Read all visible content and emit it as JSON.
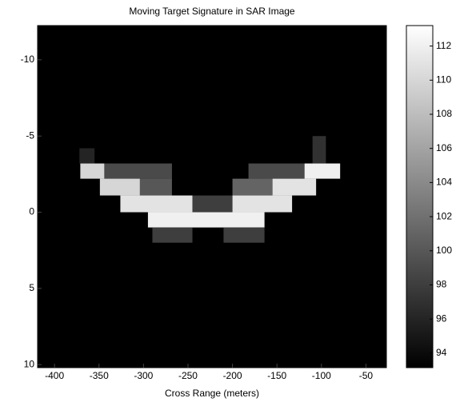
{
  "chart_data": {
    "type": "image",
    "title": "Moving Target Signature in SAR Image",
    "xlabel": "Cross Range (meters)",
    "xlim": [
      -419,
      -27
    ],
    "xticks": [
      -400,
      -350,
      -300,
      -250,
      -200,
      -150,
      -100,
      -50
    ],
    "ylim": [
      -12.25,
      10.2
    ],
    "yticks": [
      -10,
      -5,
      0,
      5,
      10
    ],
    "y_reversed": true,
    "colormap": "gray",
    "clim": [
      93.15,
      113.2
    ],
    "cticks": [
      94,
      96,
      98,
      100,
      102,
      104,
      106,
      108,
      110,
      112
    ],
    "patches": [
      {
        "x": [
          -371,
          -344
        ],
        "y": [
          -3.2,
          -2.2
        ],
        "value": 110
      },
      {
        "x": [
          -344,
          -268
        ],
        "y": [
          -3.2,
          -2.2
        ],
        "value": 99
      },
      {
        "x": [
          -182,
          -119
        ],
        "y": [
          -3.2,
          -2.2
        ],
        "value": 99
      },
      {
        "x": [
          -119,
          -79
        ],
        "y": [
          -3.2,
          -2.2
        ],
        "value": 112
      },
      {
        "x": [
          -349,
          -304
        ],
        "y": [
          -2.2,
          -1.1
        ],
        "value": 110
      },
      {
        "x": [
          -304,
          -268
        ],
        "y": [
          -2.2,
          -1.1
        ],
        "value": 100
      },
      {
        "x": [
          -200,
          -155
        ],
        "y": [
          -2.2,
          -1.1
        ],
        "value": 101
      },
      {
        "x": [
          -155,
          -106
        ],
        "y": [
          -2.2,
          -1.1
        ],
        "value": 111
      },
      {
        "x": [
          -326,
          -245
        ],
        "y": [
          -1.1,
          0
        ],
        "value": 111
      },
      {
        "x": [
          -245,
          -200
        ],
        "y": [
          -1.1,
          0
        ],
        "value": 98
      },
      {
        "x": [
          -200,
          -133
        ],
        "y": [
          -1.1,
          0
        ],
        "value": 111
      },
      {
        "x": [
          -295,
          -164
        ],
        "y": [
          0,
          1
        ],
        "value": 112
      },
      {
        "x": [
          -290,
          -245
        ],
        "y": [
          1,
          2
        ],
        "value": 98
      },
      {
        "x": [
          -210,
          -164
        ],
        "y": [
          1,
          2
        ],
        "value": 98
      },
      {
        "x": [
          -372,
          -355
        ],
        "y": [
          -4.2,
          -3.2
        ],
        "value": 96
      },
      {
        "x": [
          -110,
          -95
        ],
        "y": [
          -5,
          -3.2
        ],
        "value": 97
      }
    ]
  }
}
